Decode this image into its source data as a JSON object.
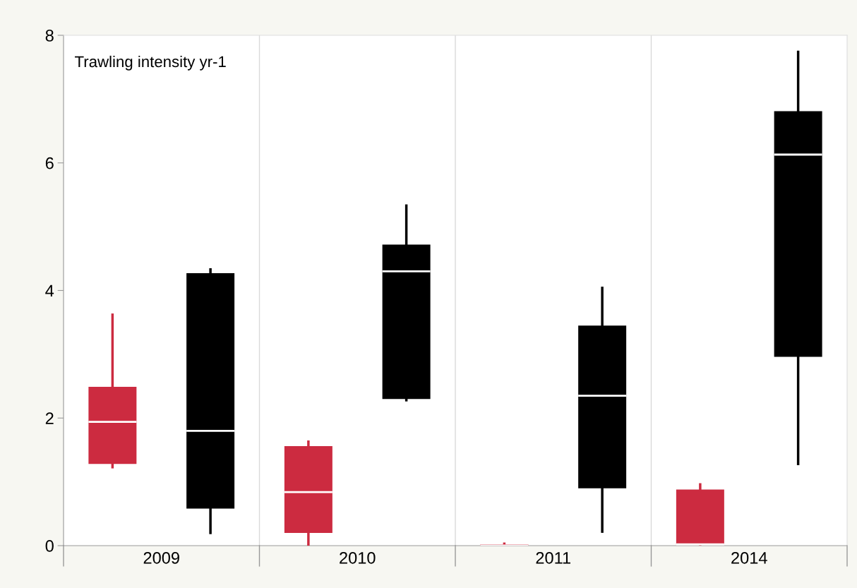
{
  "chart_data": {
    "type": "box",
    "annotations": [
      "Trawling intensity yr-1"
    ],
    "categories": [
      "2009",
      "2010",
      "2011",
      "2014"
    ],
    "series": [
      {
        "color": "#cc2b40",
        "boxes": [
          {
            "low": 1.23,
            "q1": 1.28,
            "median": 1.94,
            "q3": 2.49,
            "high": 3.62
          },
          {
            "low": 0,
            "q1": 0.2,
            "median": 0.84,
            "q3": 1.56,
            "high": 1.63
          },
          {
            "low": 0,
            "q1": 0,
            "median": 0,
            "q3": 0.02,
            "high": 0.03
          },
          {
            "low": 0.02,
            "q1": 0.02,
            "median": 0.02,
            "q3": 0.88,
            "high": 0.96
          }
        ]
      },
      {
        "color": "#000000",
        "boxes": [
          {
            "low": 0.2,
            "q1": 0.58,
            "median": 1.8,
            "q3": 4.27,
            "high": 4.33
          },
          {
            "low": 2.28,
            "q1": 2.3,
            "median": 4.3,
            "q3": 4.72,
            "high": 5.33
          },
          {
            "low": 0.22,
            "q1": 0.9,
            "median": 2.35,
            "q3": 3.45,
            "high": 4.04
          },
          {
            "low": 1.28,
            "q1": 2.96,
            "median": 6.13,
            "q3": 6.81,
            "high": 7.74
          }
        ]
      }
    ],
    "ylim": [
      0,
      8
    ],
    "yticks": [
      0,
      2,
      4,
      6,
      8
    ],
    "grid": "x"
  }
}
